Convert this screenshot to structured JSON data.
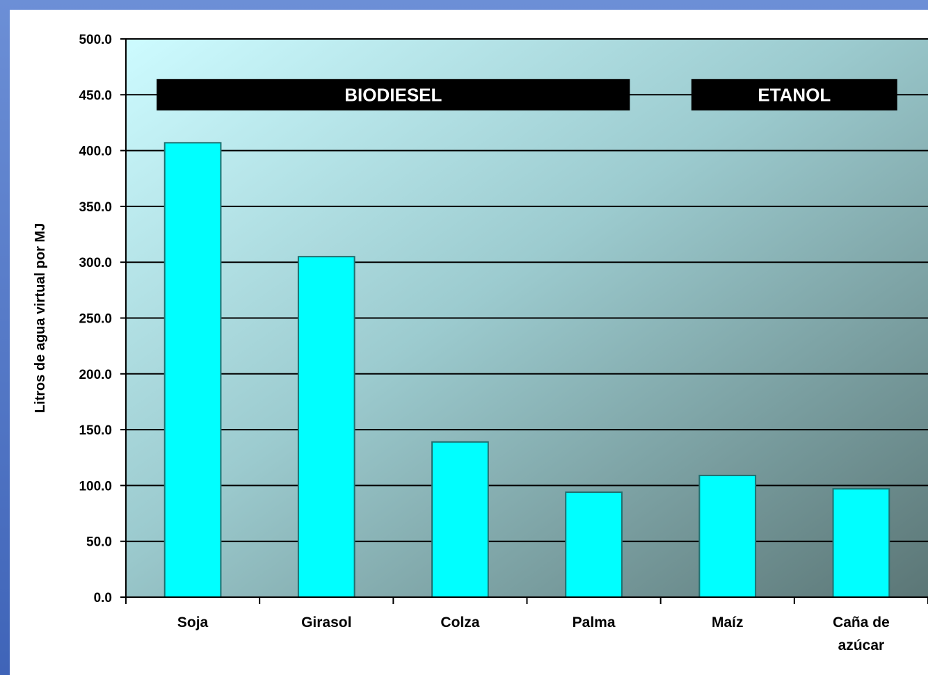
{
  "chart_data": {
    "type": "bar",
    "categories": [
      "Soja",
      "Girasol",
      "Colza",
      "Palma",
      "Maíz",
      "Caña de azúcar"
    ],
    "category_lines": [
      [
        "Soja"
      ],
      [
        "Girasol"
      ],
      [
        "Colza"
      ],
      [
        "Palma"
      ],
      [
        "Maíz"
      ],
      [
        "Caña de",
        "azúcar"
      ]
    ],
    "values": [
      407,
      305,
      139,
      94,
      109,
      97
    ],
    "ylabel": "Litros de agua virtual por MJ",
    "xlabel": "",
    "ylim": [
      0,
      500
    ],
    "yticks": [
      "0.0",
      "50.0",
      "100.0",
      "150.0",
      "200.0",
      "250.0",
      "300.0",
      "350.0",
      "400.0",
      "450.0",
      "500.0"
    ],
    "groups": [
      {
        "label": "BIODIESEL",
        "categories": [
          "Soja",
          "Girasol",
          "Colza",
          "Palma"
        ]
      },
      {
        "label": "ETANOL",
        "categories": [
          "Maíz",
          "Caña de azúcar"
        ]
      }
    ],
    "grid": true,
    "legend": "none",
    "colors": {
      "bar": "#00ffff",
      "bar_stroke": "#1f6f6f",
      "plot_bg_start": "#c8f8fc",
      "plot_bg_end": "#5a7878",
      "group_band": "#000000"
    }
  }
}
